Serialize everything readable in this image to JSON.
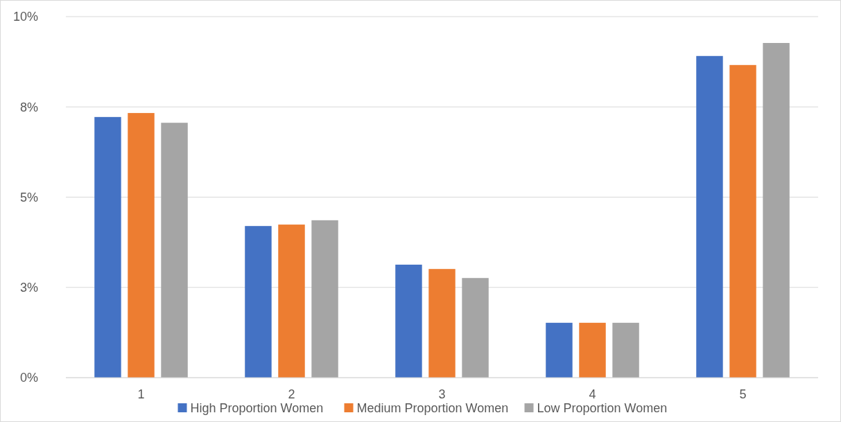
{
  "chart_data": {
    "type": "bar",
    "categories": [
      "1",
      "2",
      "3",
      "4",
      "5"
    ],
    "series": [
      {
        "name": "High Proportion Women",
        "color": "#4472c4",
        "values": [
          7.22,
          4.2,
          3.13,
          1.52,
          8.91
        ]
      },
      {
        "name": "Medium Proportion Women",
        "color": "#ed7d31",
        "values": [
          7.33,
          4.24,
          3.01,
          1.52,
          8.66
        ]
      },
      {
        "name": "Low Proportion Women",
        "color": "#a5a5a5",
        "values": [
          7.06,
          4.36,
          2.76,
          1.52,
          9.27
        ]
      }
    ],
    "ylim": [
      0,
      10
    ],
    "yticks": [
      {
        "value": 0,
        "label": "0%"
      },
      {
        "value": 2.5,
        "label": "3%"
      },
      {
        "value": 5,
        "label": "5%"
      },
      {
        "value": 7.5,
        "label": "8%"
      },
      {
        "value": 10,
        "label": "10%"
      }
    ],
    "grid": "y",
    "legend": "bottom"
  }
}
